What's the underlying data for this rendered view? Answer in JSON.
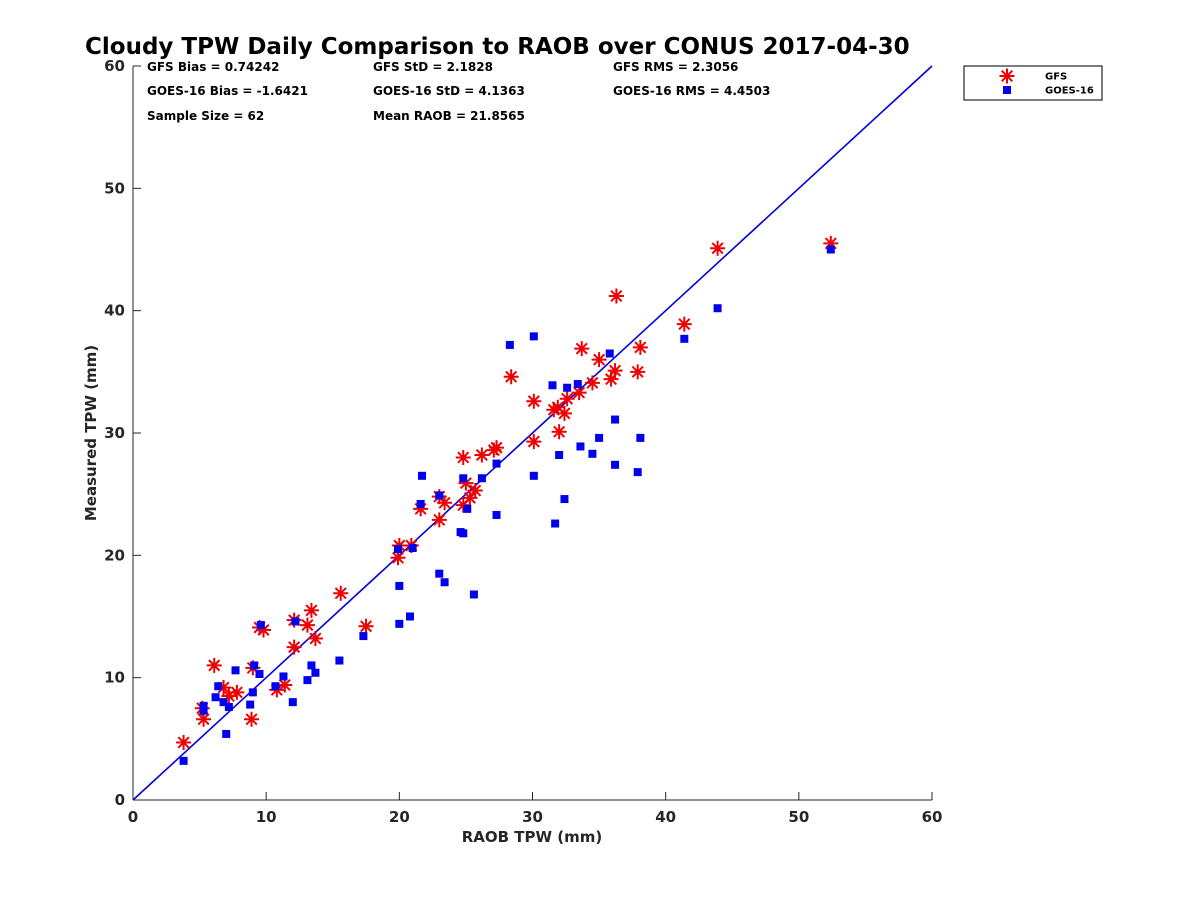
{
  "chart_data": {
    "type": "scatter",
    "title": "Cloudy TPW Daily Comparison to RAOB over CONUS 2017-04-30",
    "xlabel": "RAOB TPW (mm)",
    "ylabel": "Measured TPW (mm)",
    "xlim": [
      0,
      60
    ],
    "ylim": [
      0,
      60
    ],
    "xticks": [
      "0",
      "10",
      "20",
      "30",
      "40",
      "50",
      "60"
    ],
    "yticks": [
      "0",
      "10",
      "20",
      "30",
      "40",
      "50",
      "60"
    ],
    "grid": false,
    "legend_position": "top-right outside",
    "reference_line": {
      "x": [
        0,
        60
      ],
      "y": [
        0,
        60
      ],
      "color": "#0000dd"
    },
    "stats": [
      "GFS Bias = 0.74242",
      "GFS StD = 2.1828",
      "GFS RMS = 2.3056",
      "GOES-16 Bias = -1.6421",
      "GOES-16 StD = 4.1363",
      "GOES-16 RMS = 4.4503",
      "Sample Size = 62",
      "Mean RAOB = 21.8565"
    ],
    "series": [
      {
        "name": "GFS",
        "marker": "asterisk",
        "color": "#ee0000",
        "points": [
          [
            3.8,
            4.7
          ],
          [
            5.2,
            7.5
          ],
          [
            5.3,
            6.6
          ],
          [
            6.1,
            11.0
          ],
          [
            6.8,
            9.2
          ],
          [
            7.2,
            8.5
          ],
          [
            7.8,
            8.8
          ],
          [
            8.9,
            6.6
          ],
          [
            9.0,
            10.8
          ],
          [
            9.5,
            14.1
          ],
          [
            9.8,
            13.9
          ],
          [
            10.8,
            9.0
          ],
          [
            11.4,
            9.4
          ],
          [
            12.1,
            14.7
          ],
          [
            12.1,
            12.5
          ],
          [
            13.1,
            14.3
          ],
          [
            13.4,
            15.5
          ],
          [
            13.7,
            13.2
          ],
          [
            15.6,
            16.9
          ],
          [
            17.5,
            14.2
          ],
          [
            19.9,
            19.8
          ],
          [
            20.0,
            20.8
          ],
          [
            20.9,
            20.8
          ],
          [
            21.6,
            23.8
          ],
          [
            23.0,
            24.8
          ],
          [
            23.0,
            22.9
          ],
          [
            23.4,
            24.3
          ],
          [
            24.8,
            24.1
          ],
          [
            24.8,
            28.0
          ],
          [
            25.0,
            25.9
          ],
          [
            25.3,
            24.7
          ],
          [
            25.7,
            25.3
          ],
          [
            26.2,
            28.2
          ],
          [
            27.1,
            28.6
          ],
          [
            27.3,
            28.8
          ],
          [
            28.4,
            34.6
          ],
          [
            30.1,
            32.6
          ],
          [
            30.1,
            29.3
          ],
          [
            31.6,
            31.9
          ],
          [
            31.9,
            32.1
          ],
          [
            32.0,
            30.1
          ],
          [
            32.4,
            31.6
          ],
          [
            32.6,
            32.8
          ],
          [
            33.5,
            33.3
          ],
          [
            33.7,
            36.9
          ],
          [
            34.5,
            34.1
          ],
          [
            35.0,
            36.0
          ],
          [
            35.9,
            34.4
          ],
          [
            36.2,
            35.1
          ],
          [
            36.3,
            41.2
          ],
          [
            37.9,
            35.0
          ],
          [
            38.1,
            37.0
          ],
          [
            41.4,
            38.9
          ],
          [
            43.9,
            45.1
          ],
          [
            52.4,
            45.5
          ]
        ]
      },
      {
        "name": "GOES-16",
        "marker": "square",
        "color": "#0000ee",
        "points": [
          [
            3.8,
            3.2
          ],
          [
            5.3,
            7.7
          ],
          [
            5.3,
            7.3
          ],
          [
            6.2,
            8.4
          ],
          [
            6.4,
            9.3
          ],
          [
            6.8,
            8.0
          ],
          [
            7.0,
            5.4
          ],
          [
            7.2,
            7.6
          ],
          [
            7.7,
            10.6
          ],
          [
            8.8,
            7.8
          ],
          [
            9.0,
            8.8
          ],
          [
            9.1,
            11.0
          ],
          [
            9.5,
            10.3
          ],
          [
            9.6,
            14.3
          ],
          [
            10.7,
            9.3
          ],
          [
            11.3,
            10.1
          ],
          [
            12.0,
            8.0
          ],
          [
            12.2,
            14.6
          ],
          [
            13.1,
            9.8
          ],
          [
            13.4,
            11.0
          ],
          [
            13.7,
            10.4
          ],
          [
            15.5,
            11.4
          ],
          [
            17.3,
            13.4
          ],
          [
            19.9,
            20.5
          ],
          [
            20.0,
            17.5
          ],
          [
            20.0,
            14.4
          ],
          [
            20.8,
            15.0
          ],
          [
            21.0,
            20.6
          ],
          [
            21.6,
            24.2
          ],
          [
            21.7,
            26.5
          ],
          [
            23.0,
            24.9
          ],
          [
            23.0,
            18.5
          ],
          [
            23.4,
            17.8
          ],
          [
            24.6,
            21.9
          ],
          [
            24.8,
            21.8
          ],
          [
            24.8,
            26.3
          ],
          [
            25.1,
            23.8
          ],
          [
            25.6,
            16.8
          ],
          [
            26.2,
            26.3
          ],
          [
            27.3,
            27.5
          ],
          [
            27.3,
            23.3
          ],
          [
            28.3,
            37.2
          ],
          [
            30.1,
            37.9
          ],
          [
            30.1,
            26.5
          ],
          [
            31.5,
            33.9
          ],
          [
            31.7,
            22.6
          ],
          [
            32.0,
            28.2
          ],
          [
            32.4,
            24.6
          ],
          [
            32.6,
            33.7
          ],
          [
            33.4,
            34.0
          ],
          [
            33.6,
            28.9
          ],
          [
            34.5,
            28.3
          ],
          [
            35.0,
            29.6
          ],
          [
            35.8,
            36.5
          ],
          [
            36.2,
            31.1
          ],
          [
            36.2,
            27.4
          ],
          [
            37.9,
            26.8
          ],
          [
            38.1,
            29.6
          ],
          [
            41.4,
            37.7
          ],
          [
            43.9,
            40.2
          ],
          [
            52.4,
            45.0
          ]
        ]
      }
    ]
  }
}
